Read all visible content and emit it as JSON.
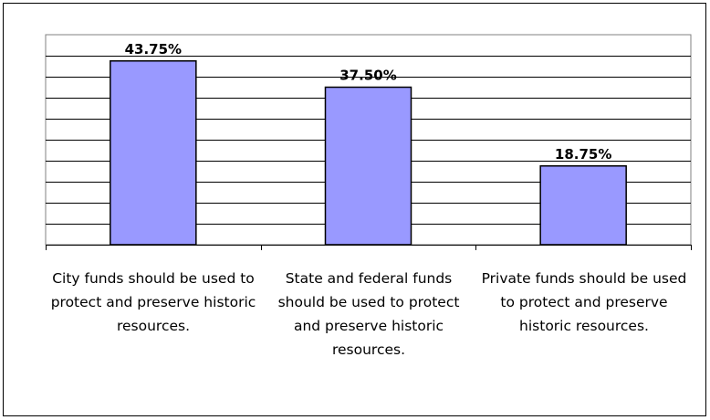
{
  "chart_data": {
    "type": "bar",
    "title": "",
    "xlabel": "",
    "ylabel": "",
    "categories": [
      "City funds should be used to protect and preserve historic resources.",
      "State and federal funds should be used to protect and preserve historic resources.",
      "Private funds should be used to protect and preserve historic resources."
    ],
    "values": [
      43.75,
      37.5,
      18.75
    ],
    "data_labels": [
      "43.75%",
      "37.50%",
      "18.75%"
    ],
    "ylim": [
      0,
      50
    ],
    "grid": true,
    "legend": "none",
    "colors": {
      "bar_fill": "#9999ff",
      "bar_stroke": "#000000",
      "grid": "#000000"
    }
  }
}
